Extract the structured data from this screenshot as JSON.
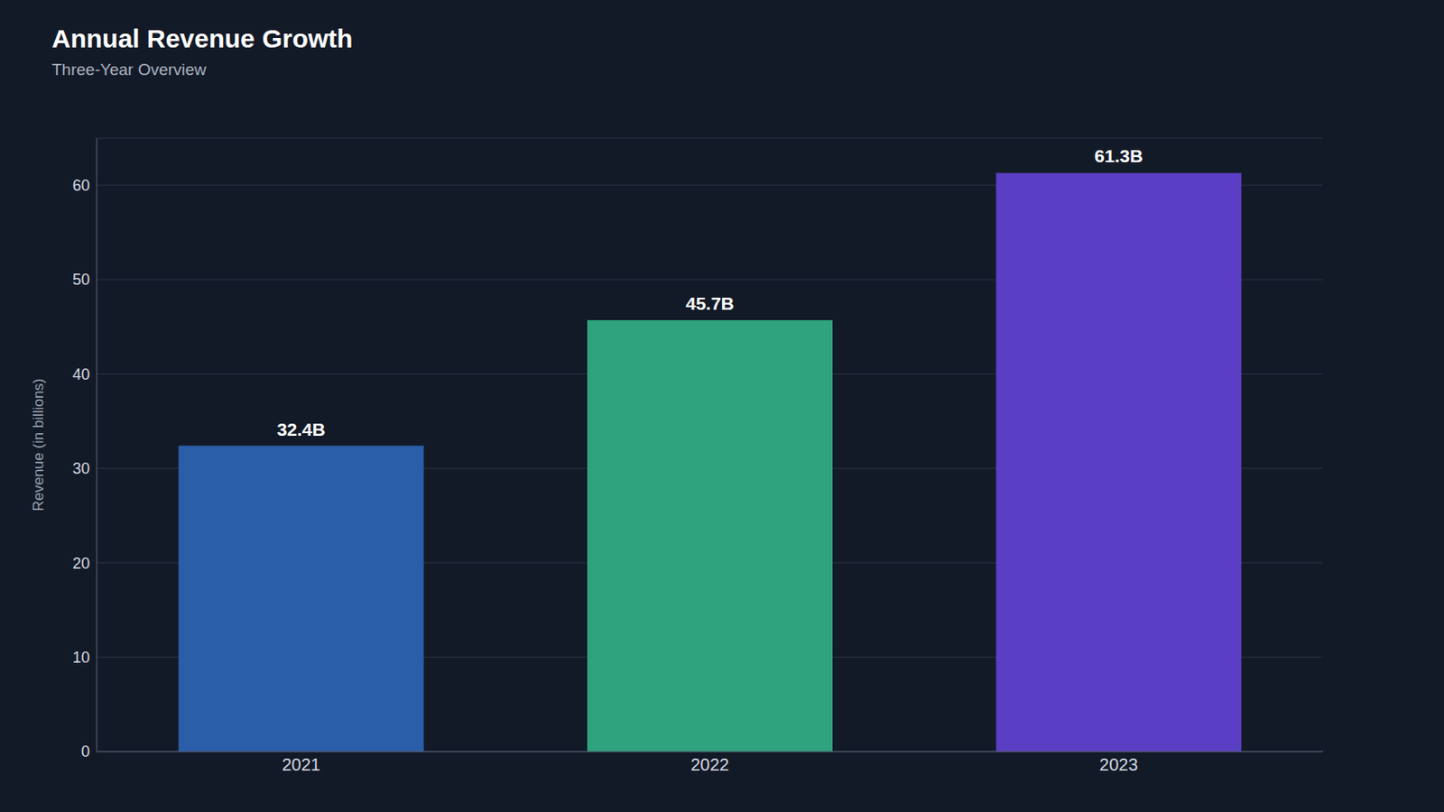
{
  "chart_data": {
    "type": "bar",
    "title": "Annual Revenue Growth",
    "subtitle": "Three-Year Overview",
    "y_label": "Revenue (in billions)",
    "categories": [
      "2021",
      "2022",
      "2023"
    ],
    "values": [
      32.4,
      45.7,
      61.3
    ],
    "value_labels": [
      "32.4B",
      "45.7B",
      "61.3B"
    ],
    "colors": [
      "#2a5ea8",
      "#2ea37e",
      "#5a3fc4"
    ],
    "ylim": [
      0,
      65
    ],
    "yticks": [
      0,
      10,
      20,
      30,
      40,
      50,
      60
    ],
    "grid": true,
    "data_labels": true
  }
}
